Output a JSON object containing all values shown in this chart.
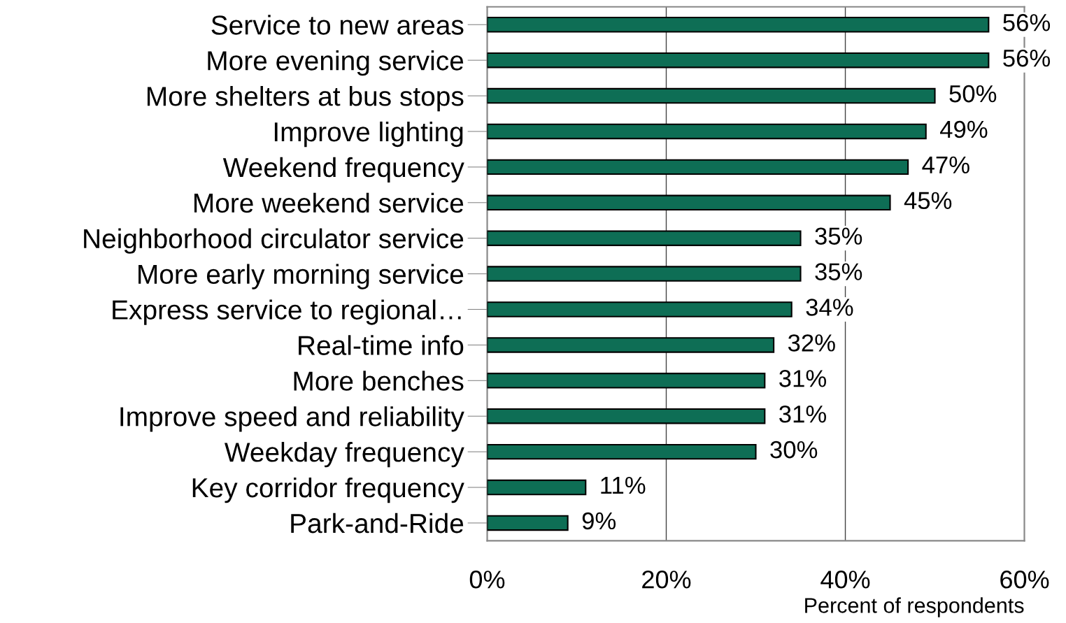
{
  "chart_data": {
    "type": "bar",
    "orientation": "horizontal",
    "xlabel": "Percent of respondents",
    "categories": [
      "Service to new areas",
      "More evening service",
      "More shelters at bus stops",
      "Improve lighting",
      "Weekend frequency",
      "More weekend service",
      "Neighborhood circulator service",
      "More early morning service",
      "Express service to regional…",
      "Real-time info",
      "More benches",
      "Improve speed and reliability",
      "Weekday frequency",
      "Key corridor frequency",
      "Park-and-Ride"
    ],
    "values": [
      56,
      56,
      50,
      49,
      47,
      45,
      35,
      35,
      34,
      32,
      31,
      31,
      30,
      11,
      9
    ],
    "value_labels": [
      "56%",
      "56%",
      "50%",
      "49%",
      "47%",
      "45%",
      "35%",
      "35%",
      "34%",
      "32%",
      "31%",
      "31%",
      "30%",
      "11%",
      "9%"
    ],
    "color": "#0e6e55",
    "xlim": [
      0,
      60
    ],
    "xticks": [
      {
        "value": 0,
        "label": "0%"
      },
      {
        "value": 20,
        "label": "20%"
      },
      {
        "value": 40,
        "label": "40%"
      },
      {
        "value": 60,
        "label": "60%"
      }
    ],
    "grid": "x"
  }
}
